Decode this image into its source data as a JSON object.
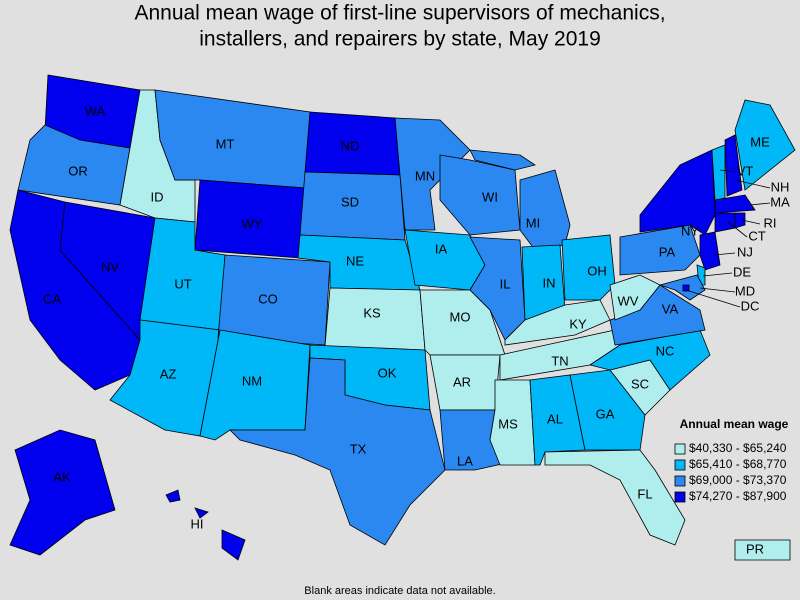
{
  "title": [
    "Annual mean wage of first-line supervisors of mechanics,",
    "installers, and repairers by state, May 2019"
  ],
  "legend": {
    "title": "Annual mean wage",
    "items": [
      {
        "label": "$40,330 - $65,240",
        "color": "#b0eeee"
      },
      {
        "label": "$65,410 - $68,770",
        "color": "#00b8f8"
      },
      {
        "label": "$69,000 - $73,370",
        "color": "#2a88f0"
      },
      {
        "label": "$74,270 - $87,900",
        "color": "#0000ee"
      }
    ]
  },
  "states": [
    {
      "label": "WA",
      "tier": 3
    },
    {
      "label": "OR",
      "tier": 2
    },
    {
      "label": "CA",
      "tier": 3
    },
    {
      "label": "NV",
      "tier": 3
    },
    {
      "label": "ID",
      "tier": 0
    },
    {
      "label": "MT",
      "tier": 2
    },
    {
      "label": "WY",
      "tier": 3
    },
    {
      "label": "UT",
      "tier": 1
    },
    {
      "label": "AZ",
      "tier": 1
    },
    {
      "label": "CO",
      "tier": 2
    },
    {
      "label": "NM",
      "tier": 1
    },
    {
      "label": "ND",
      "tier": 3
    },
    {
      "label": "SD",
      "tier": 2
    },
    {
      "label": "NE",
      "tier": 1
    },
    {
      "label": "KS",
      "tier": 0
    },
    {
      "label": "OK",
      "tier": 1
    },
    {
      "label": "TX",
      "tier": 2
    },
    {
      "label": "MN",
      "tier": 2
    },
    {
      "label": "IA",
      "tier": 1
    },
    {
      "label": "MO",
      "tier": 0
    },
    {
      "label": "AR",
      "tier": 0
    },
    {
      "label": "LA",
      "tier": 2
    },
    {
      "label": "WI",
      "tier": 2
    },
    {
      "label": "IL",
      "tier": 2
    },
    {
      "label": "MI",
      "tier": 2
    },
    {
      "label": "IN",
      "tier": 1
    },
    {
      "label": "OH",
      "tier": 1
    },
    {
      "label": "KY",
      "tier": 0
    },
    {
      "label": "TN",
      "tier": 0
    },
    {
      "label": "MS",
      "tier": 0
    },
    {
      "label": "AL",
      "tier": 1
    },
    {
      "label": "GA",
      "tier": 1
    },
    {
      "label": "FL",
      "tier": 0
    },
    {
      "label": "SC",
      "tier": 0
    },
    {
      "label": "NC",
      "tier": 1
    },
    {
      "label": "VA",
      "tier": 2
    },
    {
      "label": "WV",
      "tier": 0
    },
    {
      "label": "PA",
      "tier": 2
    },
    {
      "label": "NY",
      "tier": 3
    },
    {
      "label": "VT",
      "tier": 1
    },
    {
      "label": "NH",
      "tier": 3
    },
    {
      "label": "ME",
      "tier": 1
    },
    {
      "label": "MA",
      "tier": 3
    },
    {
      "label": "CT",
      "tier": 3
    },
    {
      "label": "RI",
      "tier": 3
    },
    {
      "label": "NJ",
      "tier": 3
    },
    {
      "label": "DE",
      "tier": 1
    },
    {
      "label": "MD",
      "tier": 2
    },
    {
      "label": "DC",
      "tier": 3
    },
    {
      "label": "AK",
      "tier": 3
    },
    {
      "label": "HI",
      "tier": 3
    },
    {
      "label": "PR",
      "tier": 0
    }
  ],
  "note": "Blank areas indicate data not available."
}
